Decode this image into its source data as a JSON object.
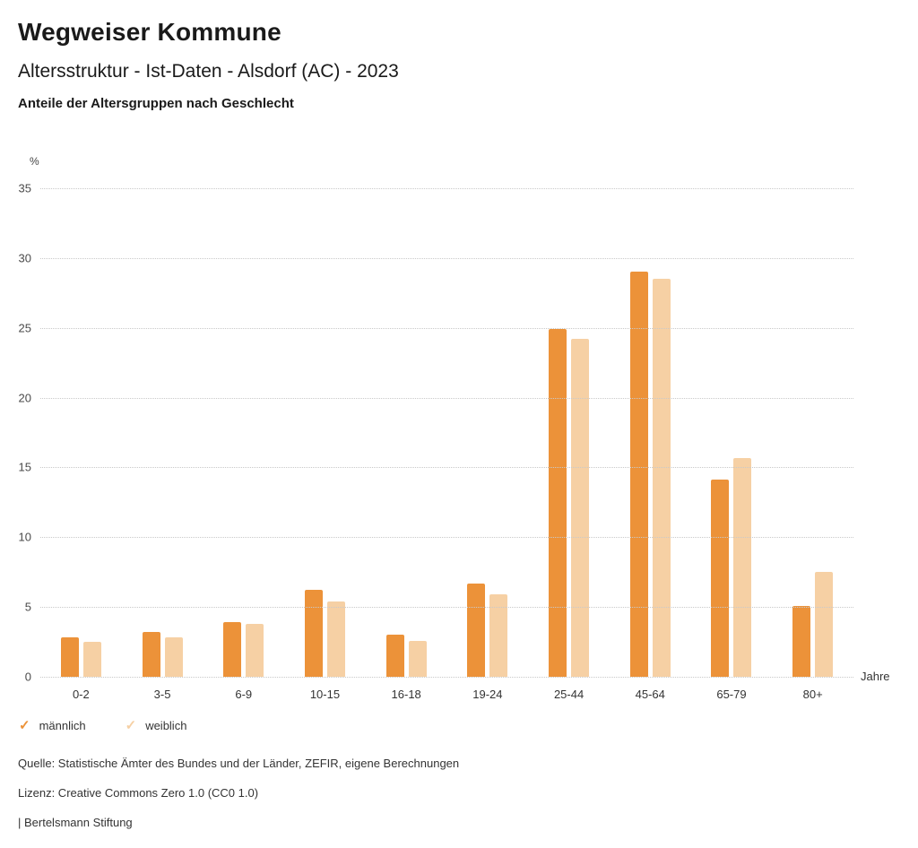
{
  "header": {
    "title": "Wegweiser Kommune",
    "subtitle": "Altersstruktur - Ist-Daten - Alsdorf (AC) - 2023",
    "heading": "Anteile der Altersgruppen nach Geschlecht"
  },
  "chart_data": {
    "type": "bar",
    "title": "Anteile der Altersgruppen nach Geschlecht",
    "categories": [
      "0-2",
      "3-5",
      "6-9",
      "10-15",
      "16-18",
      "19-24",
      "25-44",
      "45-64",
      "65-79",
      "80+"
    ],
    "series": [
      {
        "name": "männlich",
        "color": "#EC9239",
        "values": [
          2.8,
          3.2,
          3.9,
          6.2,
          3.0,
          6.7,
          24.9,
          29.0,
          14.1,
          5.1
        ]
      },
      {
        "name": "weiblich",
        "color": "#F6D0A4",
        "values": [
          2.5,
          2.8,
          3.8,
          5.4,
          2.6,
          5.9,
          24.2,
          28.5,
          15.7,
          7.5
        ]
      }
    ],
    "ylabel": "%",
    "xlabel": "Jahre",
    "ylim": [
      0,
      35
    ],
    "yticks": [
      0,
      5,
      10,
      15,
      20,
      25,
      30,
      35
    ],
    "grid": true,
    "legend_position": "bottom"
  },
  "footer": {
    "source": "Quelle: Statistische Ämter des Bundes und der Länder, ZEFIR, eigene Berechnungen",
    "license": "Lizenz: Creative Commons Zero 1.0 (CC0 1.0)",
    "attribution": "| Bertelsmann Stiftung"
  }
}
